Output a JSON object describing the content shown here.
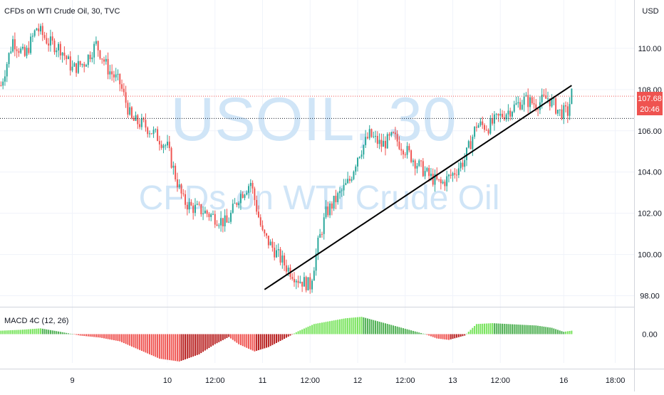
{
  "header": {
    "symbol_title": "CFDs on WTI Crude Oil, 30, TVC",
    "currency": "USD"
  },
  "watermark": {
    "line1": "USOIL, 30",
    "line2": "CFDs on WTI Crude Oil"
  },
  "price_label": {
    "price": "107.68",
    "countdown": "20:46"
  },
  "macd": {
    "title": "MACD 4C (12, 26)",
    "zero_label": "0.00"
  },
  "colors": {
    "up": "#26a69a",
    "down": "#ef5350",
    "macd_up": "#4caf50",
    "macd_up_light": "#76e35a",
    "macd_down": "#ef5350",
    "macd_down_dark": "#b71c1c",
    "trendline": "#000000",
    "watermark": "#d0e5f7",
    "price_line": "#ef5350"
  },
  "chart_data": {
    "type": "candlestick",
    "ylim": [
      97.5,
      112.0
    ],
    "y_ticks": [
      "98.00",
      "100.00",
      "102.00",
      "104.00",
      "106.00",
      "108.00",
      "110.00"
    ],
    "y_tick_values": [
      98,
      100,
      102,
      104,
      106,
      108,
      110
    ],
    "x_ticks": [
      "9",
      "10",
      "12:00",
      "11",
      "12:00",
      "12",
      "12:00",
      "13",
      "12:00",
      "16",
      "18:00"
    ],
    "x_tick_index": [
      36,
      84,
      108,
      132,
      156,
      180,
      204,
      228,
      252,
      284,
      310
    ],
    "x_count": 320,
    "last_price": 107.68,
    "prev_close_line": 106.6,
    "trendline": {
      "start": {
        "index": 133,
        "price": 98.3
      },
      "end": {
        "index": 288,
        "price": 108.2
      }
    },
    "price_path": [
      [
        0,
        108.2
      ],
      [
        6,
        110.4
      ],
      [
        12,
        109.6
      ],
      [
        18,
        111.0
      ],
      [
        24,
        110.3
      ],
      [
        30,
        110.0
      ],
      [
        36,
        109.0
      ],
      [
        42,
        109.3
      ],
      [
        48,
        110.2
      ],
      [
        54,
        109.0
      ],
      [
        60,
        108.3
      ],
      [
        66,
        106.5
      ],
      [
        72,
        106.3
      ],
      [
        78,
        105.8
      ],
      [
        84,
        105.2
      ],
      [
        88,
        103.8
      ],
      [
        92,
        102.6
      ],
      [
        96,
        102.3
      ],
      [
        102,
        102.1
      ],
      [
        108,
        101.8
      ],
      [
        114,
        101.5
      ],
      [
        120,
        102.8
      ],
      [
        126,
        103.5
      ],
      [
        132,
        101.0
      ],
      [
        138,
        100.2
      ],
      [
        144,
        99.4
      ],
      [
        150,
        98.8
      ],
      [
        156,
        98.5
      ],
      [
        160,
        100.5
      ],
      [
        164,
        102.0
      ],
      [
        170,
        102.8
      ],
      [
        176,
        103.6
      ],
      [
        180,
        104.8
      ],
      [
        186,
        105.8
      ],
      [
        192,
        105.3
      ],
      [
        198,
        105.7
      ],
      [
        204,
        105.1
      ],
      [
        210,
        104.4
      ],
      [
        216,
        103.8
      ],
      [
        222,
        103.4
      ],
      [
        228,
        103.9
      ],
      [
        234,
        104.6
      ],
      [
        240,
        106.3
      ],
      [
        246,
        106.2
      ],
      [
        252,
        106.7
      ],
      [
        258,
        107.1
      ],
      [
        264,
        107.5
      ],
      [
        270,
        107.3
      ],
      [
        276,
        107.6
      ],
      [
        282,
        106.9
      ],
      [
        286,
        106.9
      ],
      [
        288,
        107.8
      ]
    ],
    "macd_path": [
      [
        0,
        0.12
      ],
      [
        10,
        0.15
      ],
      [
        20,
        0.2
      ],
      [
        30,
        0.08
      ],
      [
        40,
        -0.05
      ],
      [
        50,
        -0.12
      ],
      [
        60,
        -0.25
      ],
      [
        70,
        -0.55
      ],
      [
        80,
        -0.85
      ],
      [
        90,
        -0.95
      ],
      [
        100,
        -0.7
      ],
      [
        108,
        -0.35
      ],
      [
        115,
        -0.1
      ],
      [
        120,
        -0.35
      ],
      [
        128,
        -0.6
      ],
      [
        135,
        -0.45
      ],
      [
        142,
        -0.2
      ],
      [
        150,
        0.1
      ],
      [
        158,
        0.35
      ],
      [
        166,
        0.45
      ],
      [
        174,
        0.55
      ],
      [
        182,
        0.6
      ],
      [
        190,
        0.45
      ],
      [
        198,
        0.3
      ],
      [
        206,
        0.15
      ],
      [
        214,
        0.0
      ],
      [
        220,
        -0.15
      ],
      [
        226,
        -0.2
      ],
      [
        234,
        -0.05
      ],
      [
        240,
        0.35
      ],
      [
        248,
        0.38
      ],
      [
        256,
        0.35
      ],
      [
        264,
        0.32
      ],
      [
        270,
        0.3
      ],
      [
        278,
        0.22
      ],
      [
        284,
        0.08
      ],
      [
        288,
        0.12
      ]
    ],
    "macd_ylim": [
      -1.0,
      0.9
    ]
  }
}
